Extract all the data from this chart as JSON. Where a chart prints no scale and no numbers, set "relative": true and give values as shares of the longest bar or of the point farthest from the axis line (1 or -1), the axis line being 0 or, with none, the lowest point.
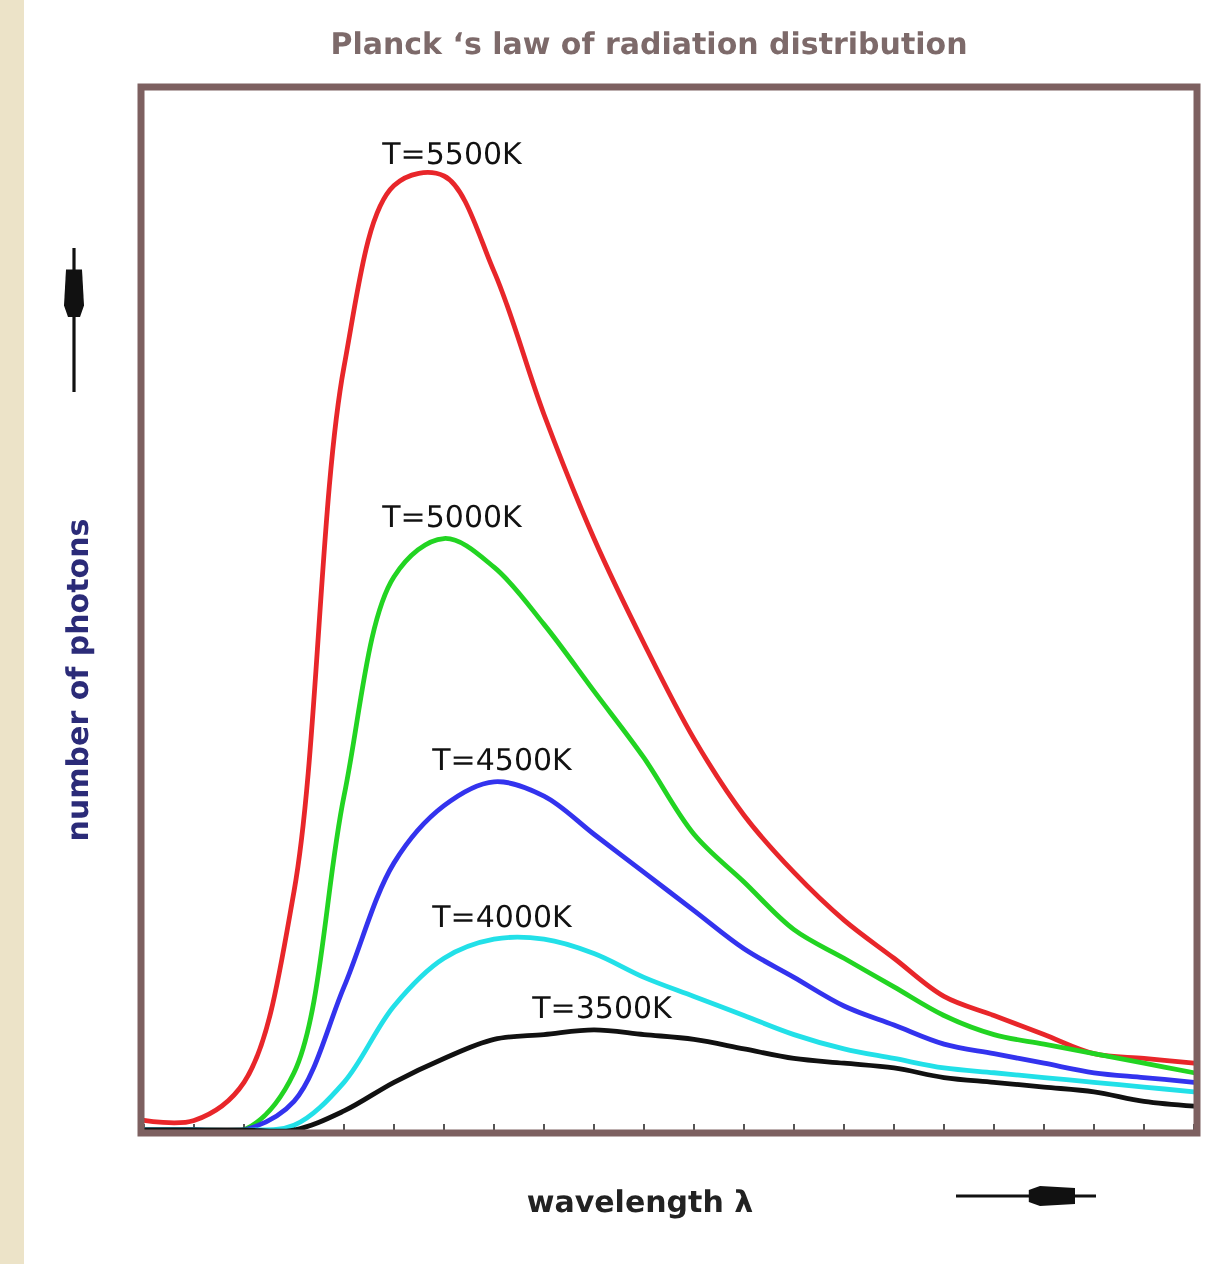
{
  "chart_data": {
    "type": "line",
    "title": "Planck ‘s law of radiation distribution",
    "xlabel": "wavelength λ",
    "ylabel": "number of photons",
    "relative": true,
    "marker": "none",
    "line_style": "solid",
    "categories": [
      null,
      null,
      null,
      null,
      null,
      null,
      null,
      null,
      null,
      null,
      null,
      null,
      null,
      null,
      null,
      null,
      null,
      null,
      null,
      null,
      null,
      null
    ],
    "series": [
      {
        "name": "T=5500K",
        "color": "#e8262a",
        "values": [
          0.01,
          0.01,
          0.05,
          0.25,
          0.8,
          0.99,
          1,
          0.9,
          0.75,
          0.62,
          0.51,
          0.41,
          0.33,
          0.27,
          0.22,
          0.18,
          0.14,
          0.12,
          0.1,
          0.08,
          0.075,
          0.07
        ]
      },
      {
        "name": "T=5000K",
        "color": "#22d422",
        "values": [
          0,
          0,
          0,
          0.06,
          0.35,
          0.58,
          0.62,
          0.59,
          0.53,
          0.46,
          0.39,
          0.31,
          0.26,
          0.21,
          0.18,
          0.15,
          0.12,
          0.1,
          0.09,
          0.08,
          0.07,
          0.06
        ]
      },
      {
        "name": "T=4500K",
        "color": "#3333ee",
        "values": [
          0,
          0,
          0,
          0.03,
          0.15,
          0.28,
          0.34,
          0.365,
          0.35,
          0.31,
          0.27,
          0.23,
          0.19,
          0.16,
          0.13,
          0.11,
          0.09,
          0.08,
          0.07,
          0.06,
          0.055,
          0.05
        ]
      },
      {
        "name": "T=4000K",
        "color": "#22e0e8",
        "values": [
          0,
          0,
          0,
          0.005,
          0.05,
          0.13,
          0.18,
          0.2,
          0.2,
          0.185,
          0.16,
          0.14,
          0.12,
          0.1,
          0.085,
          0.075,
          0.065,
          0.06,
          0.055,
          0.05,
          0.045,
          0.04
        ]
      },
      {
        "name": "T=3500K",
        "color": "#111111",
        "values": [
          0,
          0,
          0,
          0,
          0.02,
          0.05,
          0.075,
          0.095,
          0.1,
          0.105,
          0.1,
          0.095,
          0.085,
          0.075,
          0.07,
          0.065,
          0.055,
          0.05,
          0.045,
          0.04,
          0.03,
          0.025
        ]
      }
    ]
  }
}
